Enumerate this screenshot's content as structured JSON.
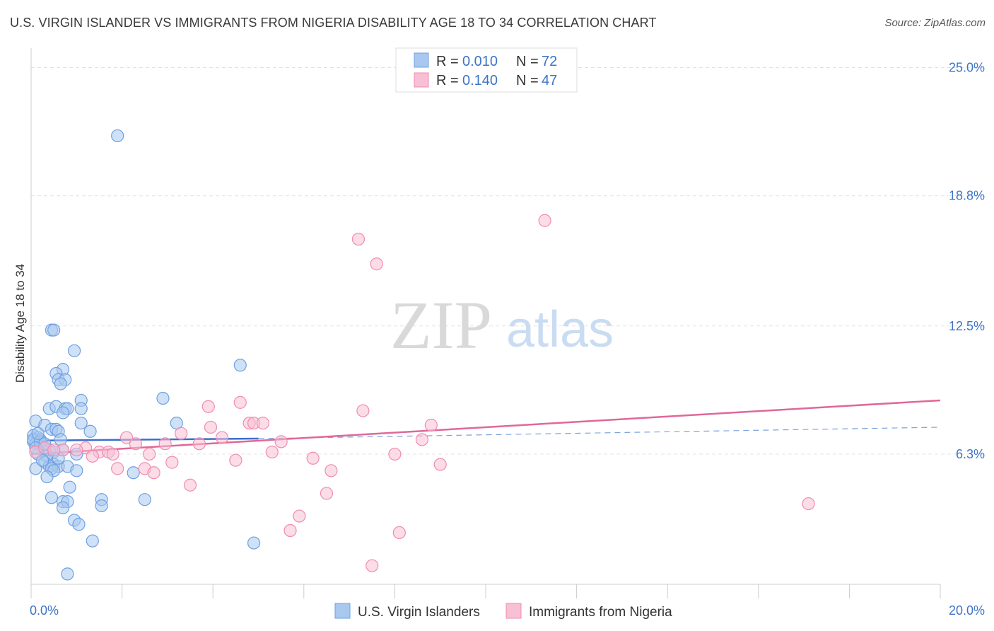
{
  "chart_data": {
    "type": "scatter",
    "title": "U.S. VIRGIN ISLANDER VS IMMIGRANTS FROM NIGERIA DISABILITY AGE 18 TO 34 CORRELATION CHART",
    "source": "Source: ZipAtlas.com",
    "ylabel": "Disability Age 18 to 34",
    "xlim": [
      0,
      20
    ],
    "ylim": [
      0,
      25.6
    ],
    "y_ticks": [
      {
        "value": 25.0,
        "label": "25.0%"
      },
      {
        "value": 18.8,
        "label": "18.8%"
      },
      {
        "value": 12.5,
        "label": "12.5%"
      },
      {
        "value": 6.3,
        "label": "6.3%"
      }
    ],
    "x_ticks": [
      {
        "value": 0,
        "label": "0.0%"
      },
      {
        "value": 20,
        "label": "20.0%"
      }
    ],
    "watermark": {
      "part1": "ZIP",
      "part2": "atlas"
    },
    "legend": [
      {
        "r_label": "R =",
        "r_value": "0.010",
        "n_label": "N =",
        "n_value": "72"
      },
      {
        "r_label": "R =",
        "r_value": "0.140",
        "n_label": "N =",
        "n_value": "47"
      }
    ],
    "series": [
      {
        "name": "U.S. Virgin Islanders",
        "color": "#6fa0e0",
        "fill": "#a8c8f0",
        "trend_color": "#3a6fd0",
        "trend": {
          "x0": 0,
          "y0": 6.95,
          "x1": 5,
          "y1": 7.05,
          "x_dash_end": 20,
          "y_dash_end": 7.6
        },
        "points": [
          [
            1.9,
            21.7
          ],
          [
            0.45,
            12.3
          ],
          [
            0.5,
            12.3
          ],
          [
            0.95,
            11.3
          ],
          [
            4.6,
            10.6
          ],
          [
            0.7,
            10.4
          ],
          [
            0.55,
            10.2
          ],
          [
            0.6,
            9.9
          ],
          [
            0.75,
            9.9
          ],
          [
            0.65,
            9.7
          ],
          [
            2.9,
            9.0
          ],
          [
            1.1,
            8.9
          ],
          [
            0.4,
            8.5
          ],
          [
            0.55,
            8.6
          ],
          [
            0.75,
            8.5
          ],
          [
            0.8,
            8.5
          ],
          [
            1.1,
            8.5
          ],
          [
            0.7,
            8.3
          ],
          [
            0.1,
            7.9
          ],
          [
            1.1,
            7.8
          ],
          [
            3.2,
            7.8
          ],
          [
            0.3,
            7.7
          ],
          [
            0.45,
            7.5
          ],
          [
            0.55,
            7.5
          ],
          [
            0.6,
            7.4
          ],
          [
            1.3,
            7.4
          ],
          [
            0.05,
            7.2
          ],
          [
            0.15,
            7.1
          ],
          [
            0.2,
            7.0
          ],
          [
            0.65,
            7.0
          ],
          [
            0.05,
            6.9
          ],
          [
            0.1,
            6.8
          ],
          [
            0.2,
            6.7
          ],
          [
            0.3,
            6.6
          ],
          [
            0.25,
            6.5
          ],
          [
            0.4,
            6.5
          ],
          [
            0.5,
            6.4
          ],
          [
            0.7,
            6.5
          ],
          [
            0.35,
            6.2
          ],
          [
            0.15,
            6.3
          ],
          [
            1.0,
            6.3
          ],
          [
            0.3,
            5.9
          ],
          [
            0.5,
            5.8
          ],
          [
            0.4,
            5.7
          ],
          [
            0.6,
            5.7
          ],
          [
            0.8,
            5.7
          ],
          [
            0.1,
            5.6
          ],
          [
            0.45,
            5.6
          ],
          [
            0.5,
            5.5
          ],
          [
            1.0,
            5.5
          ],
          [
            2.25,
            5.4
          ],
          [
            0.35,
            5.2
          ],
          [
            0.85,
            4.7
          ],
          [
            0.45,
            4.2
          ],
          [
            0.7,
            4.0
          ],
          [
            0.8,
            4.0
          ],
          [
            1.55,
            4.1
          ],
          [
            2.5,
            4.1
          ],
          [
            0.7,
            3.7
          ],
          [
            1.55,
            3.8
          ],
          [
            0.95,
            3.1
          ],
          [
            1.05,
            2.9
          ],
          [
            1.35,
            2.1
          ],
          [
            4.9,
            2.0
          ],
          [
            0.8,
            0.5
          ],
          [
            0.05,
            7.0
          ],
          [
            0.2,
            6.9
          ],
          [
            0.3,
            6.8
          ],
          [
            0.1,
            6.6
          ],
          [
            0.25,
            6.0
          ],
          [
            0.6,
            6.1
          ],
          [
            0.15,
            7.3
          ]
        ]
      },
      {
        "name": "Immigrants from Nigeria",
        "color": "#f08cb0",
        "fill": "#f8c0d4",
        "trend_color": "#e06898",
        "trend": {
          "x0": 0,
          "y0": 6.3,
          "x1": 20,
          "y1": 8.9
        },
        "points": [
          [
            11.3,
            17.6
          ],
          [
            7.2,
            16.7
          ],
          [
            7.6,
            15.5
          ],
          [
            7.3,
            8.4
          ],
          [
            3.9,
            8.6
          ],
          [
            4.6,
            8.8
          ],
          [
            3.95,
            7.6
          ],
          [
            4.8,
            7.8
          ],
          [
            4.9,
            7.8
          ],
          [
            5.1,
            7.8
          ],
          [
            8.8,
            7.7
          ],
          [
            3.3,
            7.3
          ],
          [
            4.2,
            7.1
          ],
          [
            2.1,
            7.1
          ],
          [
            2.3,
            6.8
          ],
          [
            2.95,
            6.8
          ],
          [
            3.7,
            6.8
          ],
          [
            8.6,
            7.0
          ],
          [
            5.5,
            6.9
          ],
          [
            1.2,
            6.6
          ],
          [
            0.7,
            6.5
          ],
          [
            1.0,
            6.5
          ],
          [
            1.5,
            6.4
          ],
          [
            1.7,
            6.4
          ],
          [
            1.8,
            6.3
          ],
          [
            1.35,
            6.2
          ],
          [
            2.6,
            6.3
          ],
          [
            5.3,
            6.4
          ],
          [
            8.0,
            6.3
          ],
          [
            0.1,
            6.4
          ],
          [
            0.3,
            6.6
          ],
          [
            0.5,
            6.5
          ],
          [
            6.2,
            6.1
          ],
          [
            4.5,
            6.0
          ],
          [
            3.1,
            5.9
          ],
          [
            9.0,
            5.8
          ],
          [
            1.9,
            5.6
          ],
          [
            2.5,
            5.6
          ],
          [
            6.6,
            5.5
          ],
          [
            2.7,
            5.4
          ],
          [
            3.5,
            4.8
          ],
          [
            6.5,
            4.4
          ],
          [
            17.1,
            3.9
          ],
          [
            5.9,
            3.3
          ],
          [
            5.7,
            2.6
          ],
          [
            8.1,
            2.5
          ],
          [
            7.5,
            0.9
          ]
        ]
      }
    ]
  }
}
